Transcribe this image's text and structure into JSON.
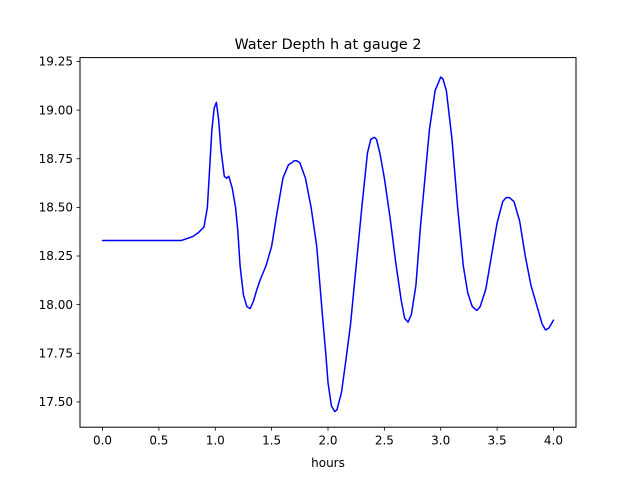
{
  "chart_data": {
    "type": "line",
    "title": "Water Depth h at gauge 2",
    "xlabel": "hours",
    "ylabel": "",
    "xlim": [
      -0.2,
      4.2
    ],
    "ylim": [
      17.37,
      19.27
    ],
    "xticks": [
      0.0,
      0.5,
      1.0,
      1.5,
      2.0,
      2.5,
      3.0,
      3.5,
      4.0
    ],
    "xtick_labels": [
      "0.0",
      "0.5",
      "1.0",
      "1.5",
      "2.0",
      "2.5",
      "3.0",
      "3.5",
      "4.0"
    ],
    "yticks": [
      17.5,
      17.75,
      18.0,
      18.25,
      18.5,
      18.75,
      19.0,
      19.25
    ],
    "ytick_labels": [
      "17.50",
      "17.75",
      "18.00",
      "18.25",
      "18.50",
      "18.75",
      "19.00",
      "19.25"
    ],
    "grid": false,
    "legend": false,
    "series": [
      {
        "color": "#0000ff",
        "x": [
          0.0,
          0.2,
          0.4,
          0.6,
          0.7,
          0.75,
          0.8,
          0.85,
          0.9,
          0.93,
          0.95,
          0.97,
          0.99,
          1.01,
          1.03,
          1.05,
          1.08,
          1.1,
          1.12,
          1.15,
          1.18,
          1.2,
          1.22,
          1.25,
          1.28,
          1.31,
          1.34,
          1.37,
          1.4,
          1.45,
          1.5,
          1.55,
          1.6,
          1.65,
          1.68,
          1.7,
          1.72,
          1.75,
          1.8,
          1.85,
          1.9,
          1.95,
          1.98,
          2.0,
          2.03,
          2.06,
          2.08,
          2.12,
          2.16,
          2.2,
          2.25,
          2.3,
          2.35,
          2.38,
          2.41,
          2.43,
          2.46,
          2.5,
          2.55,
          2.6,
          2.65,
          2.68,
          2.71,
          2.74,
          2.78,
          2.82,
          2.86,
          2.9,
          2.95,
          3.0,
          3.02,
          3.05,
          3.1,
          3.15,
          3.2,
          3.24,
          3.28,
          3.32,
          3.35,
          3.4,
          3.45,
          3.5,
          3.55,
          3.58,
          3.61,
          3.65,
          3.7,
          3.75,
          3.8,
          3.85,
          3.9,
          3.93,
          3.96,
          4.0
        ],
        "y": [
          18.33,
          18.33,
          18.33,
          18.33,
          18.33,
          18.34,
          18.35,
          18.37,
          18.4,
          18.5,
          18.7,
          18.9,
          19.01,
          19.04,
          18.95,
          18.8,
          18.66,
          18.65,
          18.66,
          18.6,
          18.5,
          18.38,
          18.2,
          18.05,
          17.99,
          17.98,
          18.02,
          18.08,
          18.13,
          18.2,
          18.3,
          18.48,
          18.65,
          18.72,
          18.73,
          18.74,
          18.74,
          18.73,
          18.65,
          18.5,
          18.3,
          17.95,
          17.75,
          17.6,
          17.48,
          17.45,
          17.46,
          17.55,
          17.72,
          17.9,
          18.2,
          18.5,
          18.78,
          18.85,
          18.86,
          18.85,
          18.78,
          18.65,
          18.45,
          18.22,
          18.02,
          17.93,
          17.91,
          17.95,
          18.1,
          18.4,
          18.65,
          18.9,
          19.1,
          19.17,
          19.16,
          19.1,
          18.85,
          18.5,
          18.2,
          18.06,
          17.99,
          17.97,
          17.99,
          18.08,
          18.25,
          18.42,
          18.53,
          18.55,
          18.55,
          18.53,
          18.43,
          18.25,
          18.1,
          18.0,
          17.9,
          17.87,
          17.88,
          17.92
        ]
      }
    ]
  }
}
